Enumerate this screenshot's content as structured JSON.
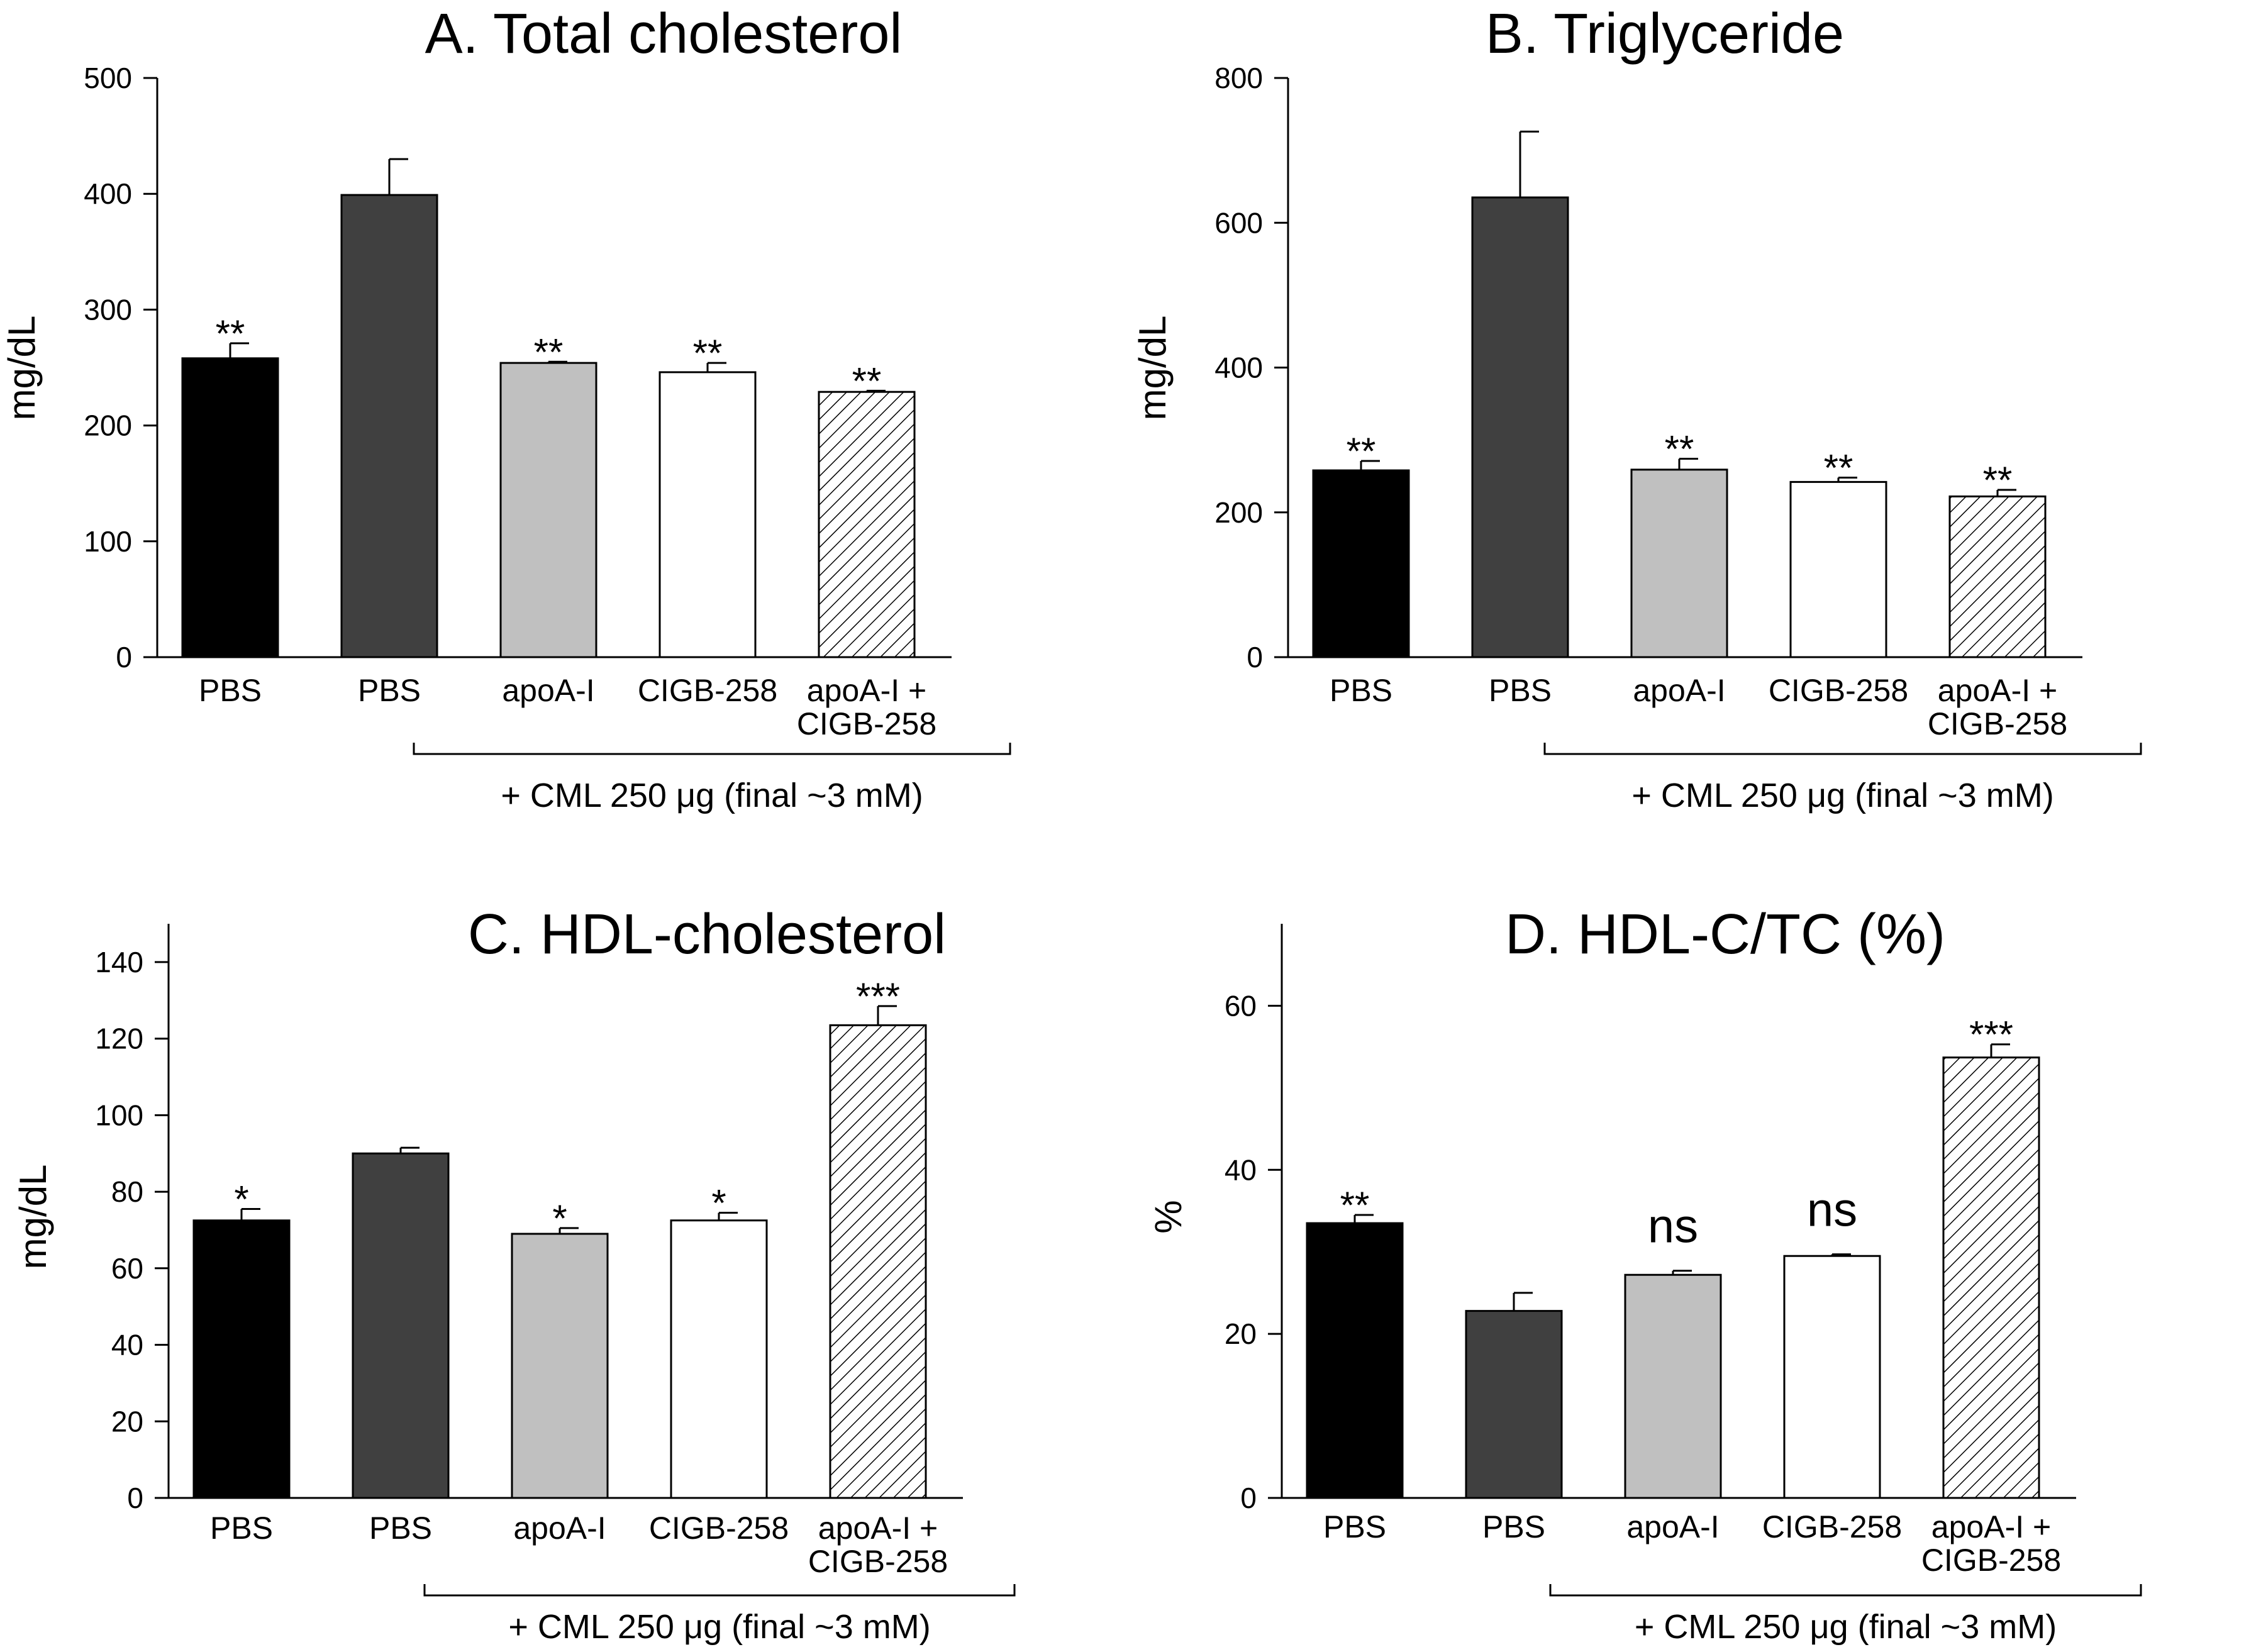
{
  "colors": {
    "PBS": "#000000",
    "PBS_CML": "#404040",
    "apoA-I": "#c0c0c0",
    "CIGB-258": "#ffffff",
    "apoA-I + CIGB-258": "hatch"
  },
  "chart_data": [
    {
      "type": "bar",
      "title": "A. Total cholesterol",
      "ylabel": "mg/dL",
      "xlabel": "",
      "ylim": [
        0,
        500
      ],
      "yticks": [
        0,
        100,
        200,
        300,
        400,
        500
      ],
      "categories": [
        [
          "PBS"
        ],
        [
          "PBS"
        ],
        [
          "apoA-I"
        ],
        [
          "CIGB-258"
        ],
        [
          "apoA-I +",
          "CIGB-258"
        ]
      ],
      "fills": [
        "PBS",
        "PBS_CML",
        "apoA-I",
        "CIGB-258",
        "apoA-I + CIGB-258"
      ],
      "values": [
        258,
        399,
        254,
        246,
        229
      ],
      "errors": [
        13,
        31,
        1,
        8,
        1
      ],
      "significance": [
        "**",
        "",
        "**",
        "**",
        "**"
      ],
      "bracket_label": "+ CML 250 μg (final ~3 mM)"
    },
    {
      "type": "bar",
      "title": "B. Triglyceride",
      "ylabel": "mg/dL",
      "xlabel": "",
      "ylim": [
        0,
        800
      ],
      "yticks": [
        0,
        200,
        400,
        600,
        800
      ],
      "categories": [
        [
          "PBS"
        ],
        [
          "PBS"
        ],
        [
          "apoA-I"
        ],
        [
          "CIGB-258"
        ],
        [
          "apoA-I +",
          "CIGB-258"
        ]
      ],
      "fills": [
        "PBS",
        "PBS_CML",
        "apoA-I",
        "CIGB-258",
        "apoA-I + CIGB-258"
      ],
      "values": [
        258,
        635,
        259,
        242,
        222
      ],
      "errors": [
        13,
        91,
        15,
        6,
        9
      ],
      "significance": [
        "**",
        "",
        "**",
        "**",
        "**"
      ],
      "bracket_label": "+ CML 250 μg (final ~3 mM)"
    },
    {
      "type": "bar",
      "title": "C. HDL-cholesterol",
      "ylabel": "mg/dL",
      "xlabel": "",
      "ylim": [
        0,
        150
      ],
      "yticks": [
        0,
        20,
        40,
        60,
        80,
        100,
        120,
        140
      ],
      "categories": [
        [
          "PBS"
        ],
        [
          "PBS"
        ],
        [
          "apoA-I"
        ],
        [
          "CIGB-258"
        ],
        [
          "apoA-I +",
          "CIGB-258"
        ]
      ],
      "fills": [
        "PBS",
        "PBS_CML",
        "apoA-I",
        "CIGB-258",
        "apoA-I + CIGB-258"
      ],
      "values": [
        72.5,
        90,
        69,
        72.5,
        123.5
      ],
      "errors": [
        3,
        1.5,
        1.5,
        2,
        5
      ],
      "significance": [
        "*",
        "",
        "*",
        "*",
        "***"
      ],
      "bracket_label": "+ CML 250 μg (final ~3 mM)"
    },
    {
      "type": "bar",
      "title": "D. HDL-C/TC (%)",
      "ylabel": "%",
      "xlabel": "",
      "ylim": [
        0,
        70
      ],
      "yticks": [
        0,
        20,
        40,
        60
      ],
      "categories": [
        [
          "PBS"
        ],
        [
          "PBS"
        ],
        [
          "apoA-I"
        ],
        [
          "CIGB-258"
        ],
        [
          "apoA-I +",
          "CIGB-258"
        ]
      ],
      "fills": [
        "PBS",
        "PBS_CML",
        "apoA-I",
        "CIGB-258",
        "apoA-I + CIGB-258"
      ],
      "values": [
        33.5,
        22.8,
        27.2,
        29.5,
        53.7
      ],
      "errors": [
        1,
        2.2,
        0.5,
        0.2,
        1.6
      ],
      "significance": [
        "**",
        "",
        "ns",
        "ns",
        "***"
      ],
      "bracket_label": "+ CML 250 μg (final ~3 mM)"
    }
  ]
}
